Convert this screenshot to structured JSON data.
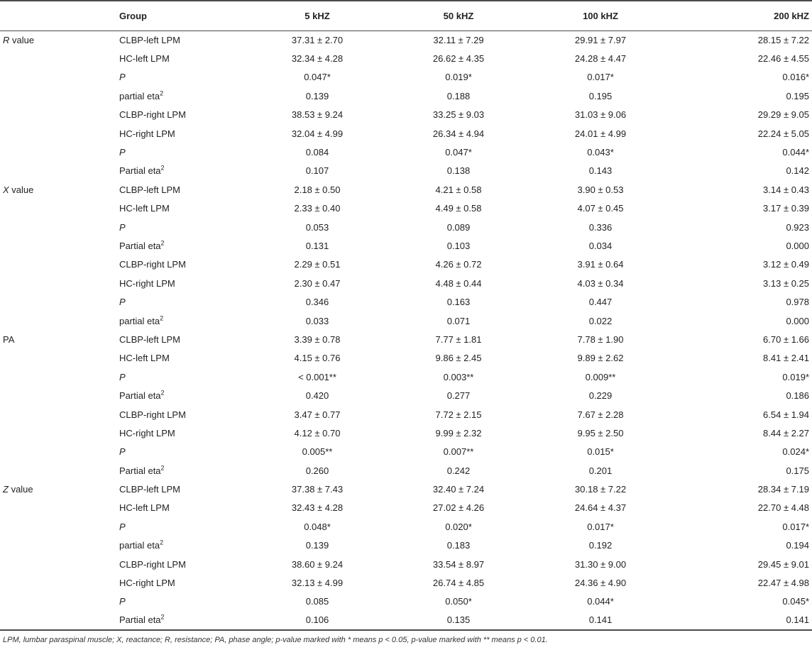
{
  "table": {
    "headers": {
      "group": "Group",
      "freq": [
        "5 kHZ",
        "50 kHZ",
        "100 kHZ",
        "200 kHZ"
      ]
    },
    "sections": [
      {
        "measure_symbol": "R",
        "measure_suffix": " value",
        "rows": [
          {
            "group": "CLBP-left LPM",
            "values": [
              "37.31 ± 2.70",
              "32.11 ± 7.29",
              "29.91 ± 7.97",
              "28.15 ± 7.22"
            ]
          },
          {
            "group": "HC-left LPM",
            "values": [
              "32.34 ± 4.28",
              "26.62 ± 4.35",
              "24.28 ± 4.47",
              "22.46 ± 4.55"
            ]
          },
          {
            "group": "P",
            "italic": true,
            "values": [
              "0.047*",
              "0.019*",
              "0.017*",
              "0.016*"
            ]
          },
          {
            "group": "partial eta",
            "sup": "2",
            "values": [
              "0.139",
              "0.188",
              "0.195",
              "0.195"
            ]
          },
          {
            "group": "CLBP-right LPM",
            "values": [
              "38.53 ± 9.24",
              "33.25 ± 9.03",
              "31.03 ± 9.06",
              "29.29 ± 9.05"
            ]
          },
          {
            "group": "HC-right LPM",
            "values": [
              "32.04 ± 4.99",
              "26.34 ± 4.94",
              "24.01 ± 4.99",
              "22.24 ± 5.05"
            ]
          },
          {
            "group": "P",
            "italic": true,
            "values": [
              "0.084",
              "0.047*",
              "0.043*",
              "0.044*"
            ]
          },
          {
            "group": "Partial eta",
            "sup": "2",
            "values": [
              "0.107",
              "0.138",
              "0.143",
              "0.142"
            ]
          }
        ]
      },
      {
        "measure_symbol": "X",
        "measure_suffix": " value",
        "rows": [
          {
            "group": "CLBP-left LPM",
            "values": [
              "2.18 ± 0.50",
              "4.21 ± 0.58",
              "3.90 ± 0.53",
              "3.14 ± 0.43"
            ]
          },
          {
            "group": "HC-left LPM",
            "values": [
              "2.33 ± 0.40",
              "4.49 ± 0.58",
              "4.07 ± 0.45",
              "3.17 ± 0.39"
            ]
          },
          {
            "group": "P",
            "italic": true,
            "values": [
              "0.053",
              "0.089",
              "0.336",
              "0.923"
            ]
          },
          {
            "group": "Partial eta",
            "sup": "2",
            "values": [
              "0.131",
              "0.103",
              "0.034",
              "0.000"
            ]
          },
          {
            "group": "CLBP-right LPM",
            "values": [
              "2.29 ± 0.51",
              "4.26 ± 0.72",
              "3.91 ± 0.64",
              "3.12 ± 0.49"
            ]
          },
          {
            "group": "HC-right LPM",
            "values": [
              "2.30 ± 0.47",
              "4.48 ± 0.44",
              "4.03 ± 0.34",
              "3.13 ± 0.25"
            ]
          },
          {
            "group": "P",
            "italic": true,
            "values": [
              "0.346",
              "0.163",
              "0.447",
              "0.978"
            ]
          },
          {
            "group": "partial eta",
            "sup": "2",
            "values": [
              "0.033",
              "0.071",
              "0.022",
              "0.000"
            ]
          }
        ]
      },
      {
        "measure_symbol": "PA",
        "measure_suffix": "",
        "measure_plain": true,
        "rows": [
          {
            "group": "CLBP-left LPM",
            "values": [
              "3.39 ± 0.78",
              "7.77 ± 1.81",
              "7.78 ± 1.90",
              "6.70 ± 1.66"
            ]
          },
          {
            "group": "HC-left LPM",
            "values": [
              "4.15 ± 0.76",
              "9.86 ± 2.45",
              "9.89 ± 2.62",
              "8.41 ± 2.41"
            ]
          },
          {
            "group": "P",
            "italic": true,
            "values": [
              "< 0.001**",
              "0.003**",
              "0.009**",
              "0.019*"
            ]
          },
          {
            "group": "Partial eta",
            "sup": "2",
            "values": [
              "0.420",
              "0.277",
              "0.229",
              "0.186"
            ]
          },
          {
            "group": "CLBP-right LPM",
            "values": [
              "3.47 ± 0.77",
              "7.72 ± 2.15",
              "7.67 ± 2.28",
              "6.54 ± 1.94"
            ]
          },
          {
            "group": "HC-right LPM",
            "values": [
              "4.12 ± 0.70",
              "9.99 ± 2.32",
              "9.95 ± 2.50",
              "8.44 ± 2.27"
            ]
          },
          {
            "group": "P",
            "italic": true,
            "values": [
              "0.005**",
              "0.007**",
              "0.015*",
              "0.024*"
            ]
          },
          {
            "group": "Partial eta",
            "sup": "2",
            "values": [
              "0.260",
              "0.242",
              "0.201",
              "0.175"
            ]
          }
        ]
      },
      {
        "measure_symbol": "Z",
        "measure_suffix": " value",
        "rows": [
          {
            "group": "CLBP-left LPM",
            "values": [
              "37.38 ± 7.43",
              "32.40 ± 7.24",
              "30.18 ± 7.22",
              "28.34 ± 7.19"
            ]
          },
          {
            "group": "HC-left LPM",
            "values": [
              "32.43 ± 4.28",
              "27.02 ± 4.26",
              "24.64 ± 4.37",
              "22.70 ± 4.48"
            ]
          },
          {
            "group": "P",
            "italic": true,
            "values": [
              "0.048*",
              "0.020*",
              "0.017*",
              "0.017*"
            ]
          },
          {
            "group": "partial eta",
            "sup": "2",
            "values": [
              "0.139",
              "0.183",
              "0.192",
              "0.194"
            ]
          },
          {
            "group": "CLBP-right LPM",
            "values": [
              "38.60 ± 9.24",
              "33.54 ± 8.97",
              "31.30 ± 9.00",
              "29.45 ± 9.01"
            ]
          },
          {
            "group": "HC-right LPM",
            "values": [
              "32.13 ± 4.99",
              "26.74 ± 4.85",
              "24.36 ± 4.90",
              "22.47 ± 4.98"
            ]
          },
          {
            "group": "P",
            "italic": true,
            "values": [
              "0.085",
              "0.050*",
              "0.044*",
              "0.045*"
            ]
          },
          {
            "group": "Partial eta",
            "sup": "2",
            "values": [
              "0.106",
              "0.135",
              "0.141",
              "0.141"
            ]
          }
        ]
      }
    ]
  },
  "footnote": "LPM, lumbar paraspinal muscle; X, reactance; R, resistance; PA, phase angle; p-value marked with * means p < 0.05, p-value marked with ** means p < 0.01.",
  "colors": {
    "text": "#222222",
    "rule": "#4a4a4a"
  }
}
